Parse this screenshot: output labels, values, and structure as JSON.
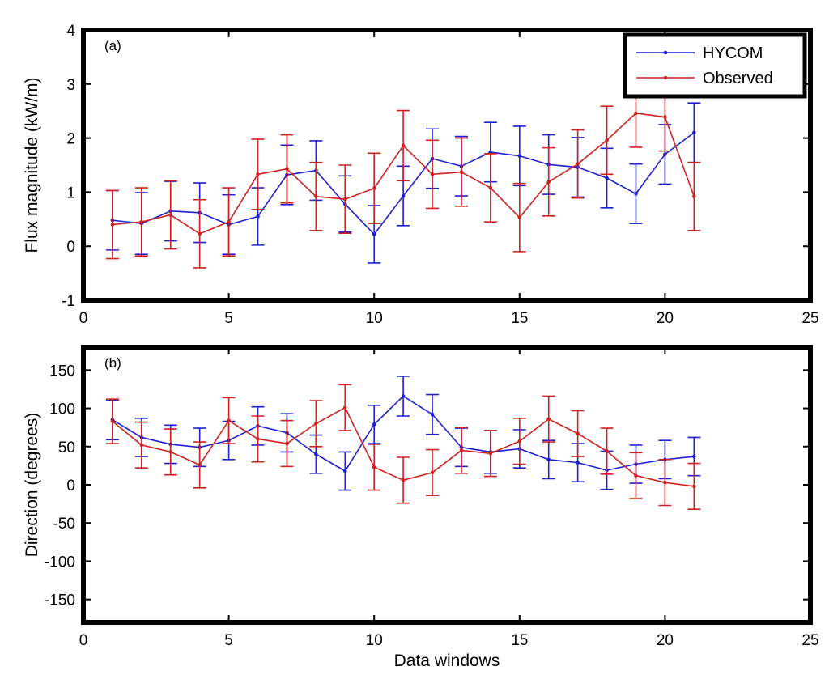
{
  "chart_data": [
    {
      "type": "line",
      "panel_label": "(a)",
      "xlabel": "",
      "ylabel": "Flux magnitude (kW/m)",
      "xlim": [
        0,
        25
      ],
      "ylim": [
        -1,
        4
      ],
      "x_ticks": [
        "0",
        "5",
        "10",
        "15",
        "20",
        "25"
      ],
      "y_ticks": [
        "-1",
        "0",
        "1",
        "2",
        "3",
        "4"
      ],
      "legend_position": "top-right",
      "grid": false,
      "x": [
        1,
        2,
        3,
        4,
        5,
        6,
        7,
        8,
        9,
        10,
        11,
        12,
        13,
        14,
        15,
        16,
        17,
        18,
        19,
        20,
        21
      ],
      "series": [
        {
          "name": "HYCOM",
          "color": "#2020d0",
          "values": [
            0.48,
            0.42,
            0.65,
            0.62,
            0.4,
            0.55,
            1.32,
            1.4,
            0.78,
            0.22,
            0.93,
            1.62,
            1.48,
            1.74,
            1.67,
            1.51,
            1.46,
            1.26,
            0.97,
            1.7,
            2.1
          ],
          "errors": [
            0.55,
            0.57,
            0.55,
            0.55,
            0.55,
            0.53,
            0.55,
            0.55,
            0.52,
            0.53,
            0.55,
            0.55,
            0.55,
            0.55,
            0.55,
            0.55,
            0.55,
            0.55,
            0.55,
            0.55,
            0.55
          ]
        },
        {
          "name": "Observed",
          "color": "#d02020",
          "values": [
            0.4,
            0.45,
            0.58,
            0.23,
            0.45,
            1.33,
            1.43,
            0.92,
            0.87,
            1.07,
            1.86,
            1.33,
            1.37,
            1.08,
            0.53,
            1.19,
            1.52,
            1.96,
            2.46,
            2.39,
            0.92
          ],
          "errors": [
            0.63,
            0.63,
            0.63,
            0.63,
            0.63,
            0.65,
            0.63,
            0.63,
            0.63,
            0.65,
            0.65,
            0.63,
            0.63,
            0.63,
            0.63,
            0.63,
            0.63,
            0.63,
            0.63,
            0.63,
            0.63
          ]
        }
      ]
    },
    {
      "type": "line",
      "panel_label": "(b)",
      "xlabel": "Data windows",
      "ylabel": "Direction (degrees)",
      "xlim": [
        0,
        25
      ],
      "ylim": [
        -180,
        180
      ],
      "x_ticks": [
        "0",
        "5",
        "10",
        "15",
        "20",
        "25"
      ],
      "y_ticks": [
        "-150",
        "-100",
        "-50",
        "0",
        "50",
        "100",
        "150"
      ],
      "grid": false,
      "x": [
        1,
        2,
        3,
        4,
        5,
        6,
        7,
        8,
        9,
        10,
        11,
        12,
        13,
        14,
        15,
        16,
        17,
        18,
        19,
        20,
        21
      ],
      "series": [
        {
          "name": "HYCOM",
          "color": "#2020d0",
          "values": [
            85,
            62,
            53,
            49,
            58,
            77,
            68,
            40,
            18,
            79,
            116,
            92,
            49,
            43,
            47,
            33,
            29,
            19,
            27,
            33,
            37
          ],
          "errors": [
            26,
            25,
            25,
            25,
            25,
            25,
            25,
            25,
            25,
            25,
            26,
            26,
            25,
            28,
            25,
            25,
            25,
            25,
            25,
            25,
            25
          ]
        },
        {
          "name": "Observed",
          "color": "#d02020",
          "values": [
            83,
            52,
            43,
            26,
            84,
            60,
            54,
            80,
            101,
            23,
            6,
            16,
            45,
            41,
            57,
            86,
            67,
            44,
            12,
            3,
            -2
          ],
          "errors": [
            29,
            30,
            30,
            30,
            30,
            30,
            30,
            30,
            30,
            30,
            30,
            30,
            30,
            30,
            30,
            30,
            30,
            30,
            30,
            30,
            30
          ]
        }
      ]
    }
  ]
}
